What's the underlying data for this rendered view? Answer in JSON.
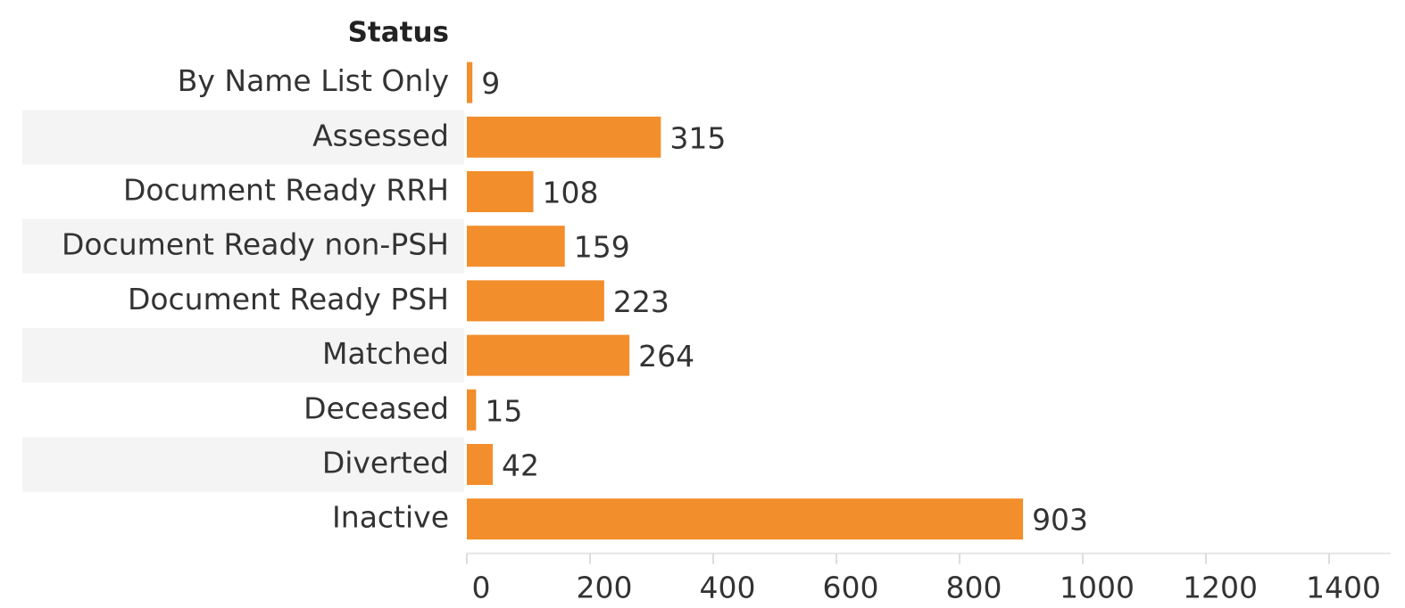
{
  "chart_data": {
    "type": "hbar",
    "y_label": "Status",
    "categories": [
      "By Name List Only",
      "Assessed",
      "Document Ready RRH",
      "Document Ready non-PSH",
      "Document Ready PSH",
      "Matched",
      "Deceased",
      "Diverted",
      "Inactive"
    ],
    "values": [
      9,
      315,
      108,
      159,
      223,
      264,
      15,
      42,
      903
    ],
    "color": "#f28e2b",
    "xlim": [
      0,
      1500
    ],
    "xticks": [
      0,
      200,
      400,
      600,
      800,
      1000,
      1200,
      1400
    ],
    "row_banding": true
  }
}
